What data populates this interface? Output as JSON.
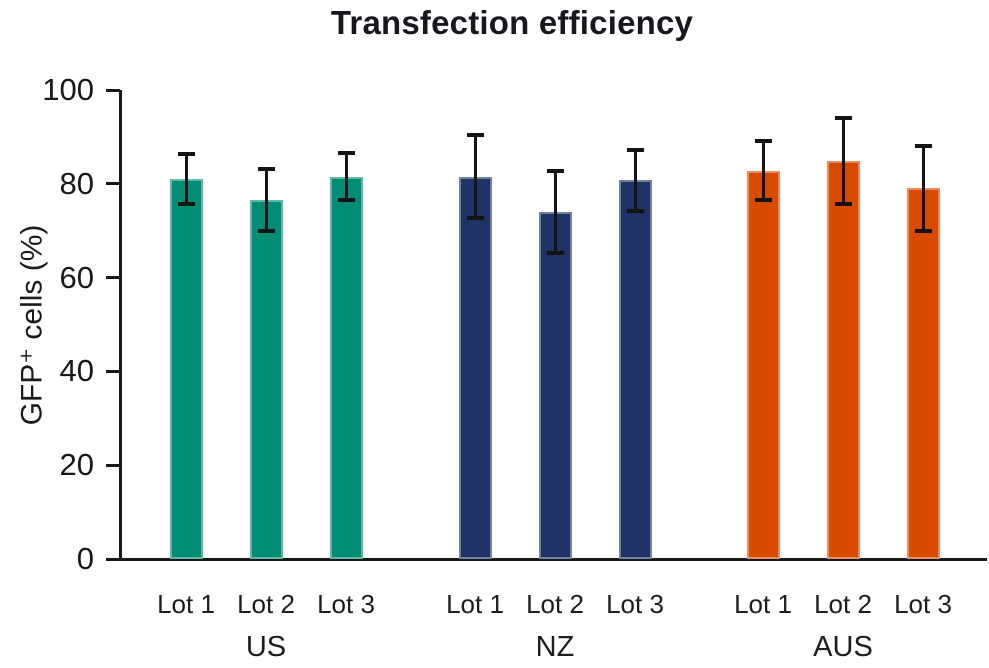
{
  "chart_data": {
    "type": "bar",
    "title": "Transfection efficiency",
    "ylabel": "GFP⁺ cells (%)",
    "xlabel": "",
    "ylim": [
      0,
      100
    ],
    "yticks": [
      0,
      20,
      40,
      60,
      80,
      100
    ],
    "grid": false,
    "legend_position": "none",
    "error_bars": "symmetric, black caps",
    "categories": [
      "Lot 1",
      "Lot 2",
      "Lot 3"
    ],
    "groups": [
      {
        "name": "US",
        "color": "#008D73",
        "values": [
          81.0,
          76.5,
          81.5
        ],
        "errors": [
          5.3,
          6.6,
          5.0
        ]
      },
      {
        "name": "NZ",
        "color": "#203366",
        "values": [
          81.5,
          74.0,
          80.8
        ],
        "errors": [
          8.8,
          8.7,
          6.5
        ]
      },
      {
        "name": "AUS",
        "color": "#D64B00",
        "values": [
          82.8,
          84.8,
          79.0
        ],
        "errors": [
          6.3,
          9.2,
          9.1
        ]
      }
    ],
    "colors": {
      "axis": "#17181a",
      "error_bar": "#141414",
      "title_text": "#16181d",
      "background": "#ffffff"
    }
  }
}
